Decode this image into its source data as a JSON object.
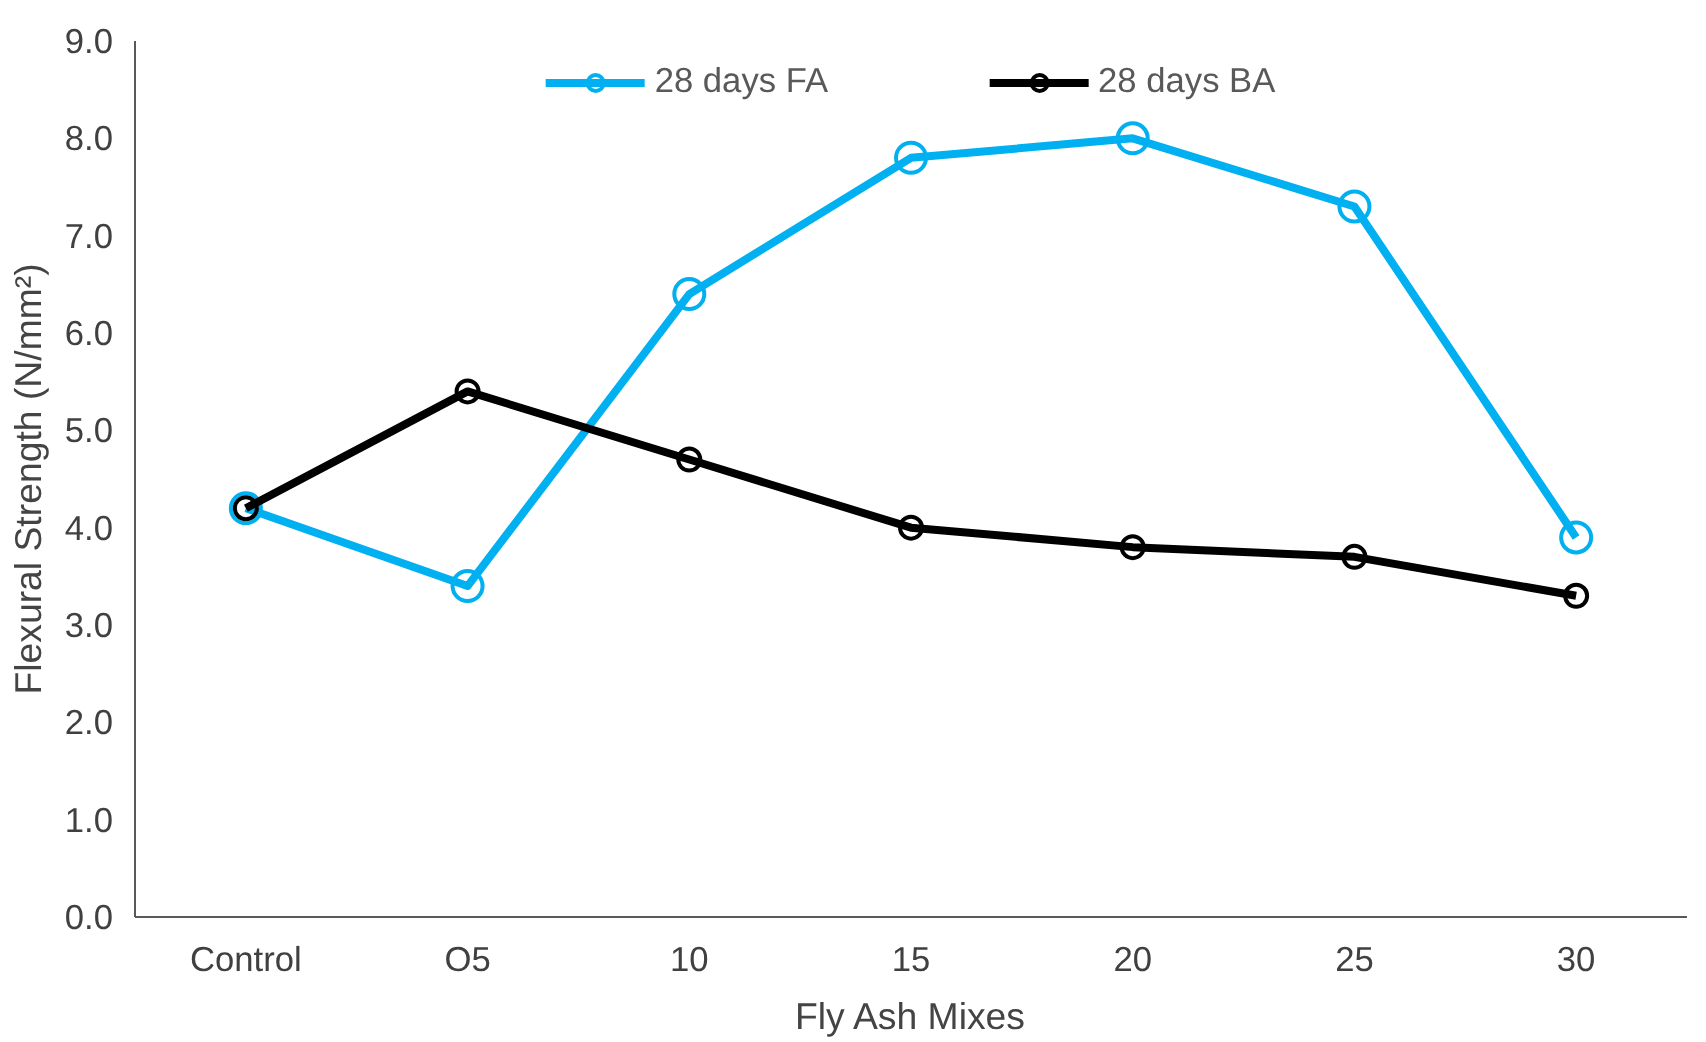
{
  "chart_data": {
    "type": "line",
    "xlabel": "Fly Ash Mixes",
    "ylabel": "Flexural Strength (N/mm²)",
    "categories": [
      "Control",
      "O5",
      "10",
      "15",
      "20",
      "25",
      "30"
    ],
    "series": [
      {
        "name": "28 days FA",
        "color": "#00b0f0",
        "values": [
          4.2,
          3.4,
          6.4,
          7.8,
          8.0,
          7.3,
          3.9
        ]
      },
      {
        "name": "28 days BA",
        "color": "#000000",
        "values": [
          4.2,
          5.4,
          4.7,
          4.0,
          3.8,
          3.7,
          3.3
        ]
      }
    ],
    "ylim": [
      0,
      9
    ],
    "yticks": [
      {
        "value": 0,
        "label": "0.0"
      },
      {
        "value": 1,
        "label": "1.0"
      },
      {
        "value": 2,
        "label": "2.0"
      },
      {
        "value": 3,
        "label": "3.0"
      },
      {
        "value": 4,
        "label": "4.0"
      },
      {
        "value": 5,
        "label": "5.0"
      },
      {
        "value": 6,
        "label": "6.0"
      },
      {
        "value": 7,
        "label": "7.0"
      },
      {
        "value": 8,
        "label": "8.0"
      },
      {
        "value": 9,
        "label": "9.0"
      }
    ],
    "grid": false,
    "legend": "top",
    "marker": "circle",
    "line_style": "solid"
  }
}
